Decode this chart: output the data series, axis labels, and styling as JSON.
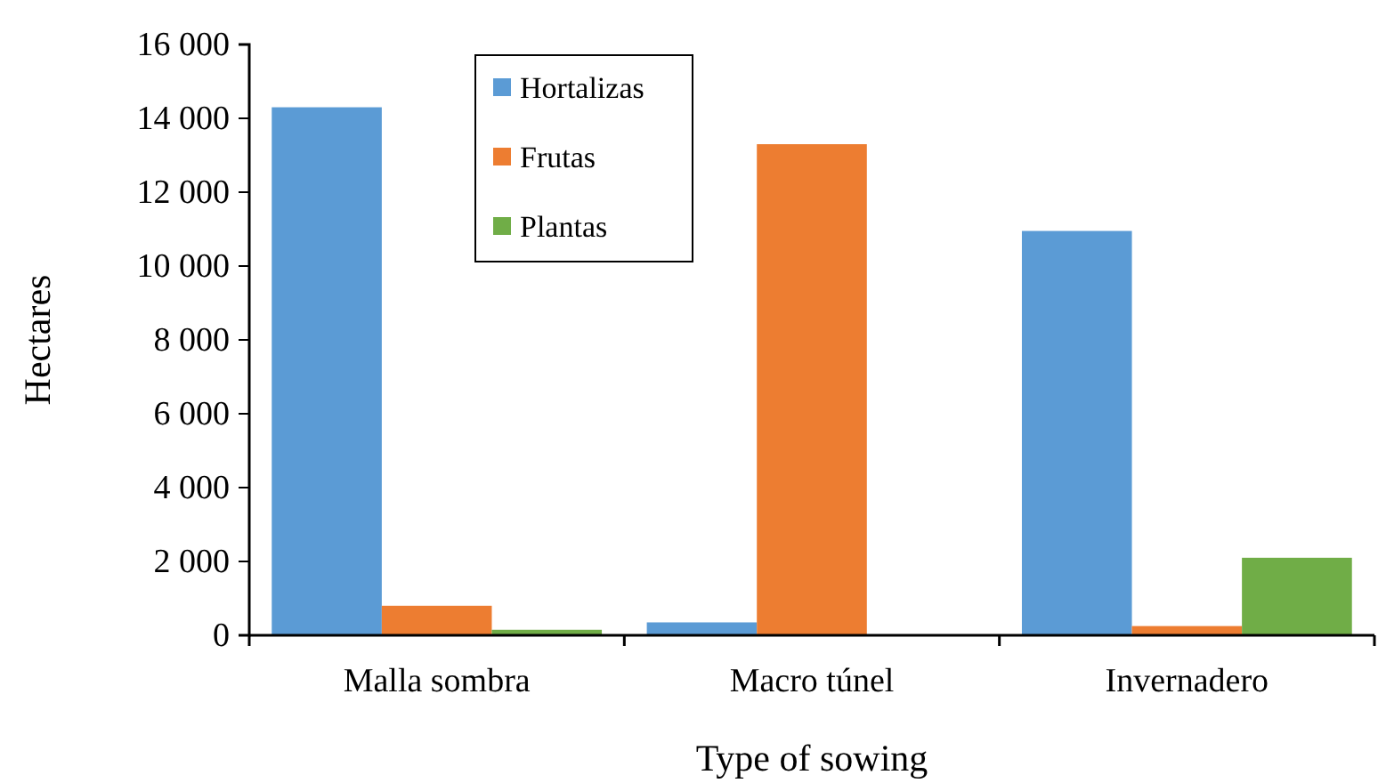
{
  "chart_data": {
    "type": "bar",
    "xlabel": "Type of sowing",
    "ylabel": "Hectares",
    "categories": [
      "Malla sombra",
      "Macro túnel",
      "Invernadero"
    ],
    "series": [
      {
        "name": "Hortalizas",
        "color": "#5b9bd5",
        "values": [
          14300,
          350,
          10950
        ]
      },
      {
        "name": "Frutas",
        "color": "#ed7d31",
        "values": [
          800,
          13300,
          250
        ]
      },
      {
        "name": "Plantas",
        "color": "#70ad47",
        "values": [
          150,
          0,
          2100
        ]
      }
    ],
    "ylim": [
      0,
      16000
    ],
    "yticks": [
      {
        "value": 0,
        "label": "0"
      },
      {
        "value": 2000,
        "label": "2 000"
      },
      {
        "value": 4000,
        "label": "4 000"
      },
      {
        "value": 6000,
        "label": "6 000"
      },
      {
        "value": 8000,
        "label": "8 000"
      },
      {
        "value": 10000,
        "label": "10 000"
      },
      {
        "value": 12000,
        "label": "12 000"
      },
      {
        "value": 14000,
        "label": "14 000"
      },
      {
        "value": 16000,
        "label": "16 000"
      }
    ],
    "grid": false,
    "legend": "top"
  }
}
